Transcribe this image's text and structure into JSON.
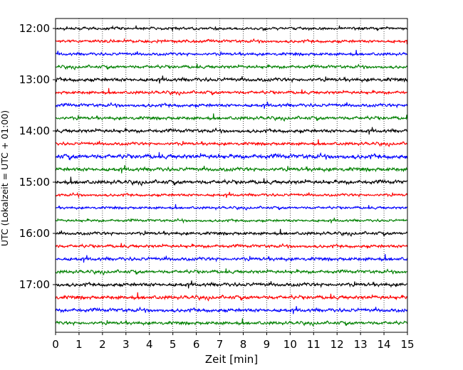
{
  "chart_data": {
    "type": "line",
    "title": "",
    "xlabel": "Zeit  [min]",
    "ylabel": "UTC (Lokalzeit = UTC + 01:00)",
    "xlim": [
      0,
      15
    ],
    "x_ticks": [
      "0",
      "1",
      "2",
      "3",
      "4",
      "5",
      "6",
      "7",
      "8",
      "9",
      "10",
      "11",
      "12",
      "13",
      "14",
      "15"
    ],
    "y_ticks": [
      "12:00",
      "13:00",
      "14:00",
      "15:00",
      "16:00",
      "17:00"
    ],
    "grid": "vertical dotted at each minute",
    "trace_interval_min": 15,
    "trace_colors": [
      "#000000",
      "#ff0000",
      "#0000ff",
      "#008000"
    ],
    "traces": [
      {
        "start": "12:00",
        "color": "#000000",
        "amplitude": 0.3
      },
      {
        "start": "12:15",
        "color": "#ff0000",
        "amplitude": 0.32
      },
      {
        "start": "12:30",
        "color": "#0000ff",
        "amplitude": 0.32
      },
      {
        "start": "12:45",
        "color": "#008000",
        "amplitude": 0.34
      },
      {
        "start": "13:00",
        "color": "#000000",
        "amplitude": 0.4
      },
      {
        "start": "13:15",
        "color": "#ff0000",
        "amplitude": 0.34
      },
      {
        "start": "13:30",
        "color": "#0000ff",
        "amplitude": 0.36
      },
      {
        "start": "13:45",
        "color": "#008000",
        "amplitude": 0.36
      },
      {
        "start": "14:00",
        "color": "#000000",
        "amplitude": 0.38
      },
      {
        "start": "14:15",
        "color": "#ff0000",
        "amplitude": 0.34
      },
      {
        "start": "14:30",
        "color": "#0000ff",
        "amplitude": 0.48
      },
      {
        "start": "14:45",
        "color": "#008000",
        "amplitude": 0.42
      },
      {
        "start": "15:00",
        "color": "#000000",
        "amplitude": 0.42
      },
      {
        "start": "15:15",
        "color": "#ff0000",
        "amplitude": 0.3
      },
      {
        "start": "15:30",
        "color": "#0000ff",
        "amplitude": 0.28
      },
      {
        "start": "15:45",
        "color": "#008000",
        "amplitude": 0.28
      },
      {
        "start": "16:00",
        "color": "#000000",
        "amplitude": 0.34
      },
      {
        "start": "16:15",
        "color": "#ff0000",
        "amplitude": 0.34
      },
      {
        "start": "16:30",
        "color": "#0000ff",
        "amplitude": 0.38
      },
      {
        "start": "16:45",
        "color": "#008000",
        "amplitude": 0.36
      },
      {
        "start": "17:00",
        "color": "#000000",
        "amplitude": 0.4
      },
      {
        "start": "17:15",
        "color": "#ff0000",
        "amplitude": 0.4
      },
      {
        "start": "17:30",
        "color": "#0000ff",
        "amplitude": 0.4
      },
      {
        "start": "17:45",
        "color": "#008000",
        "amplitude": 0.36
      }
    ]
  }
}
